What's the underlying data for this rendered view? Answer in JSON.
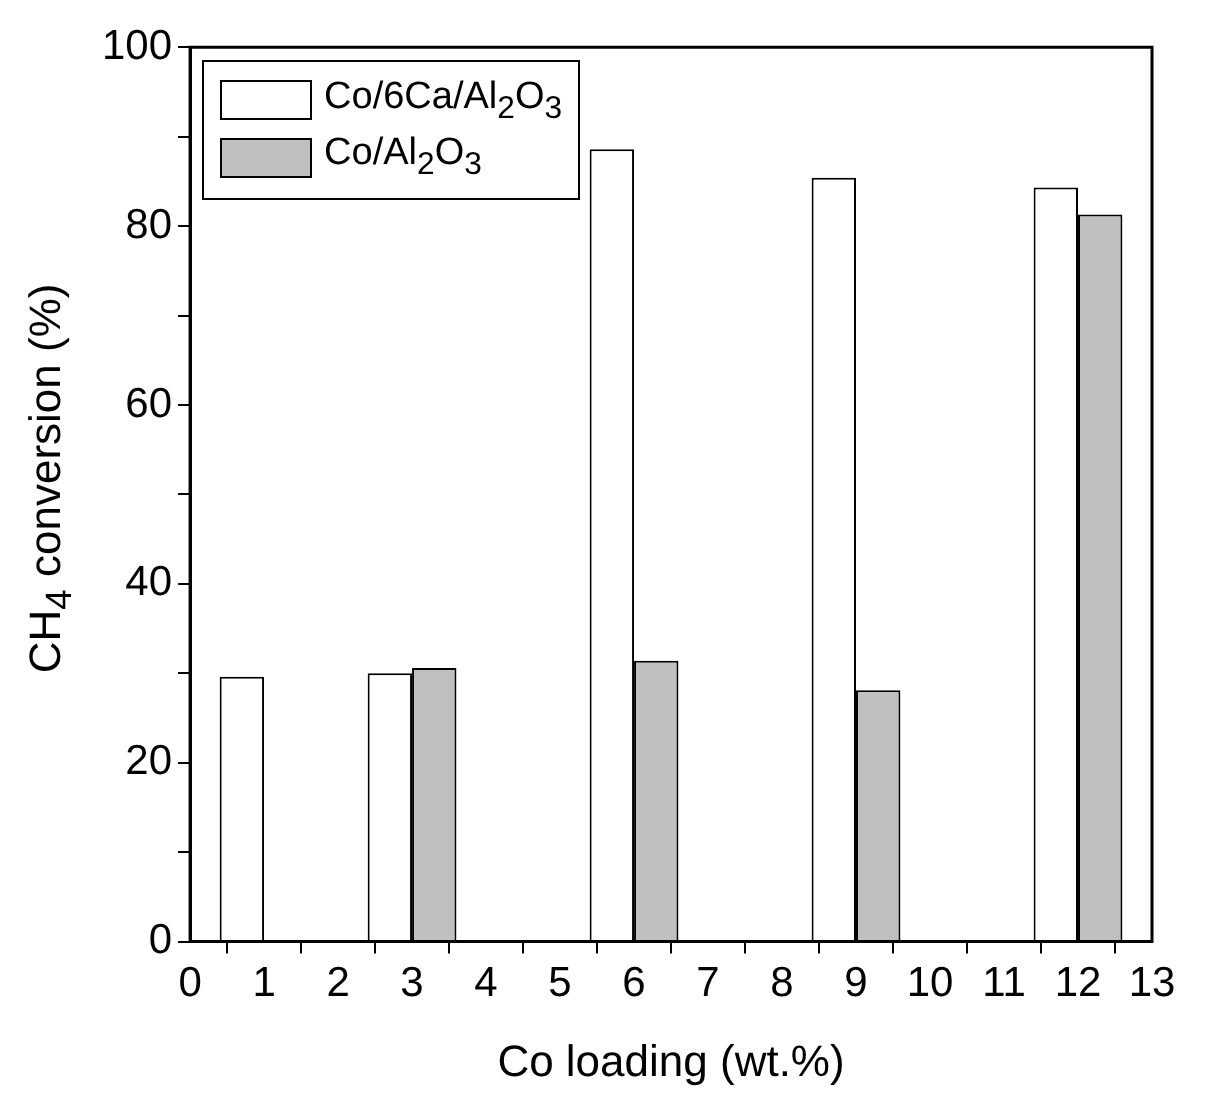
{
  "chart_data": {
    "type": "bar",
    "xlabel": "Co loading (wt.%)",
    "ylabel": "CH$_{4}$ conversion (%)",
    "x": [
      1,
      3,
      6,
      9,
      12
    ],
    "series": [
      {
        "name": "Co/6Ca/Al$_{2}$O$_{3}$",
        "color": "#ffffff",
        "values": [
          29.6,
          30.0,
          88.6,
          85.4,
          84.3
        ]
      },
      {
        "name": "Co/Al$_{2}$O$_{3}$",
        "color": "#c0c0c0",
        "values": [
          null,
          30.6,
          31.4,
          28.1,
          81.3
        ]
      }
    ],
    "xlim": [
      0,
      13
    ],
    "xticks": [
      0,
      1,
      2,
      3,
      4,
      5,
      6,
      7,
      8,
      9,
      10,
      11,
      12,
      13
    ],
    "ylim": [
      0,
      100
    ],
    "yticks": [
      0,
      {
        "value": 10,
        "label": null
      },
      20,
      {
        "value": 30,
        "label": null
      },
      40,
      {
        "value": 50,
        "label": null
      },
      60,
      {
        "value": 70,
        "label": null
      },
      80,
      {
        "value": 90,
        "label": null
      },
      100
    ],
    "grid": false,
    "legend": "top left"
  }
}
